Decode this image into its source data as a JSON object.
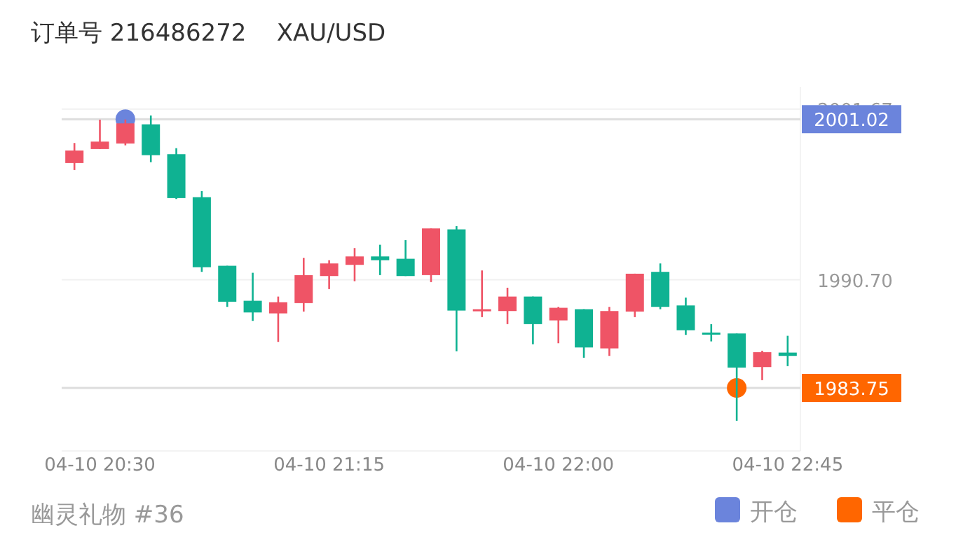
{
  "chart_data": {
    "type": "candlestick",
    "title": "订单号 216486272    XAU/USD",
    "annotations": [
      "幽灵礼物 #36"
    ],
    "categories": [
      null,
      "04-10 20:30",
      null,
      null,
      null,
      null,
      null,
      null,
      null,
      null,
      "04-10 21:15",
      null,
      null,
      null,
      null,
      null,
      null,
      null,
      null,
      "04-10 22:00",
      null,
      null,
      null,
      null,
      null,
      null,
      null,
      null,
      "04-10 22:45"
    ],
    "ylim": [
      1979.7,
      2003.1
    ],
    "yticks": [
      2001.67,
      {
        "value": 1990.7,
        "label": "1990.70"
      }
    ],
    "grid": true,
    "legend": "bottom right",
    "ref_lines": [
      {
        "axis": "y",
        "value": 2001.02,
        "label": "2001.02",
        "color": "#dddddd"
      },
      {
        "axis": "y",
        "value": 1983.75,
        "label": "1983.75",
        "color": "#dddddd"
      }
    ],
    "series": [
      {
        "type": "candlestick",
        "ohlc": [
          [
            1998.2,
            1999.49,
            1997.75,
            1999.01
          ],
          [
            1999.1,
            2000.99,
            1999.1,
            1999.58
          ],
          [
            1999.46,
            2001.0,
            1999.34,
            2000.75
          ],
          [
            2000.69,
            2001.26,
            1998.26,
            1998.71
          ],
          [
            1998.77,
            1999.16,
            1995.89,
            1995.95
          ],
          [
            1996.01,
            1996.4,
            1991.21,
            1991.51
          ],
          [
            1991.6,
            1991.6,
            1988.96,
            1989.29
          ],
          [
            1989.35,
            1991.15,
            1988.06,
            1988.6
          ],
          [
            1988.54,
            1989.62,
            1986.71,
            1989.26
          ],
          [
            1989.2,
            1992.11,
            1988.66,
            1991.0
          ],
          [
            1990.94,
            1991.96,
            1990.1,
            1991.75
          ],
          [
            1991.66,
            1992.74,
            1990.61,
            1992.2
          ],
          [
            1992.2,
            1992.95,
            1991.0,
            1991.96
          ],
          [
            1992.05,
            1993.25,
            1990.94,
            1990.94
          ],
          [
            1991.0,
            1994.0,
            1990.55,
            1994.0
          ],
          [
            1993.94,
            1994.15,
            1986.11,
            1988.72
          ],
          [
            1988.69,
            1991.3,
            1988.3,
            1988.81
          ],
          [
            1988.69,
            1990.19,
            1987.85,
            1989.62
          ],
          [
            1989.62,
            1989.62,
            1986.56,
            1987.85
          ],
          [
            1988.09,
            1988.96,
            1986.62,
            1988.9
          ],
          [
            1988.81,
            1988.81,
            1985.69,
            1986.35
          ],
          [
            1986.29,
            1988.96,
            1985.81,
            1988.69
          ],
          [
            1988.66,
            1991.09,
            1988.3,
            1991.09
          ],
          [
            1991.21,
            1991.75,
            1988.81,
            1988.96
          ],
          [
            1989.05,
            1989.56,
            1987.16,
            1987.46
          ],
          [
            1987.31,
            1987.85,
            1986.74,
            1987.22
          ],
          [
            1987.25,
            1987.25,
            1981.64,
            1985.06
          ],
          [
            1985.09,
            1986.14,
            1984.25,
            1986.05
          ],
          [
            1986.02,
            1987.1,
            1985.15,
            1985.81
          ]
        ],
        "colors": [
          "#ef5466",
          "#ef5466",
          "#ef5466",
          "#0fb292",
          "#0fb292",
          "#0fb292",
          "#0fb292",
          "#0fb292",
          "#ef5466",
          "#ef5466",
          "#ef5466",
          "#ef5466",
          "#0fb292",
          "#0fb292",
          "#ef5466",
          "#0fb292",
          "#ef5466",
          "#ef5466",
          "#0fb292",
          "#ef5466",
          "#0fb292",
          "#ef5466",
          "#ef5466",
          "#0fb292",
          "#0fb292",
          "#0fb292",
          "#0fb292",
          "#ef5466",
          "#0fb292"
        ]
      },
      {
        "type": "scatter",
        "name": "开仓",
        "color": "#6b84dc",
        "marker": "circle",
        "values": [
          null,
          null,
          2001.02,
          null,
          null,
          null,
          null,
          null,
          null,
          null,
          null,
          null,
          null,
          null,
          null,
          null,
          null,
          null,
          null,
          null,
          null,
          null,
          null,
          null,
          null,
          null,
          null,
          null,
          null
        ]
      },
      {
        "type": "scatter",
        "name": "平仓",
        "color": "#ff6600",
        "marker": "circle",
        "values": [
          null,
          null,
          null,
          null,
          null,
          null,
          null,
          null,
          null,
          null,
          null,
          null,
          null,
          null,
          null,
          null,
          null,
          null,
          null,
          null,
          null,
          null,
          null,
          null,
          null,
          null,
          1983.75,
          null,
          null
        ]
      }
    ]
  }
}
